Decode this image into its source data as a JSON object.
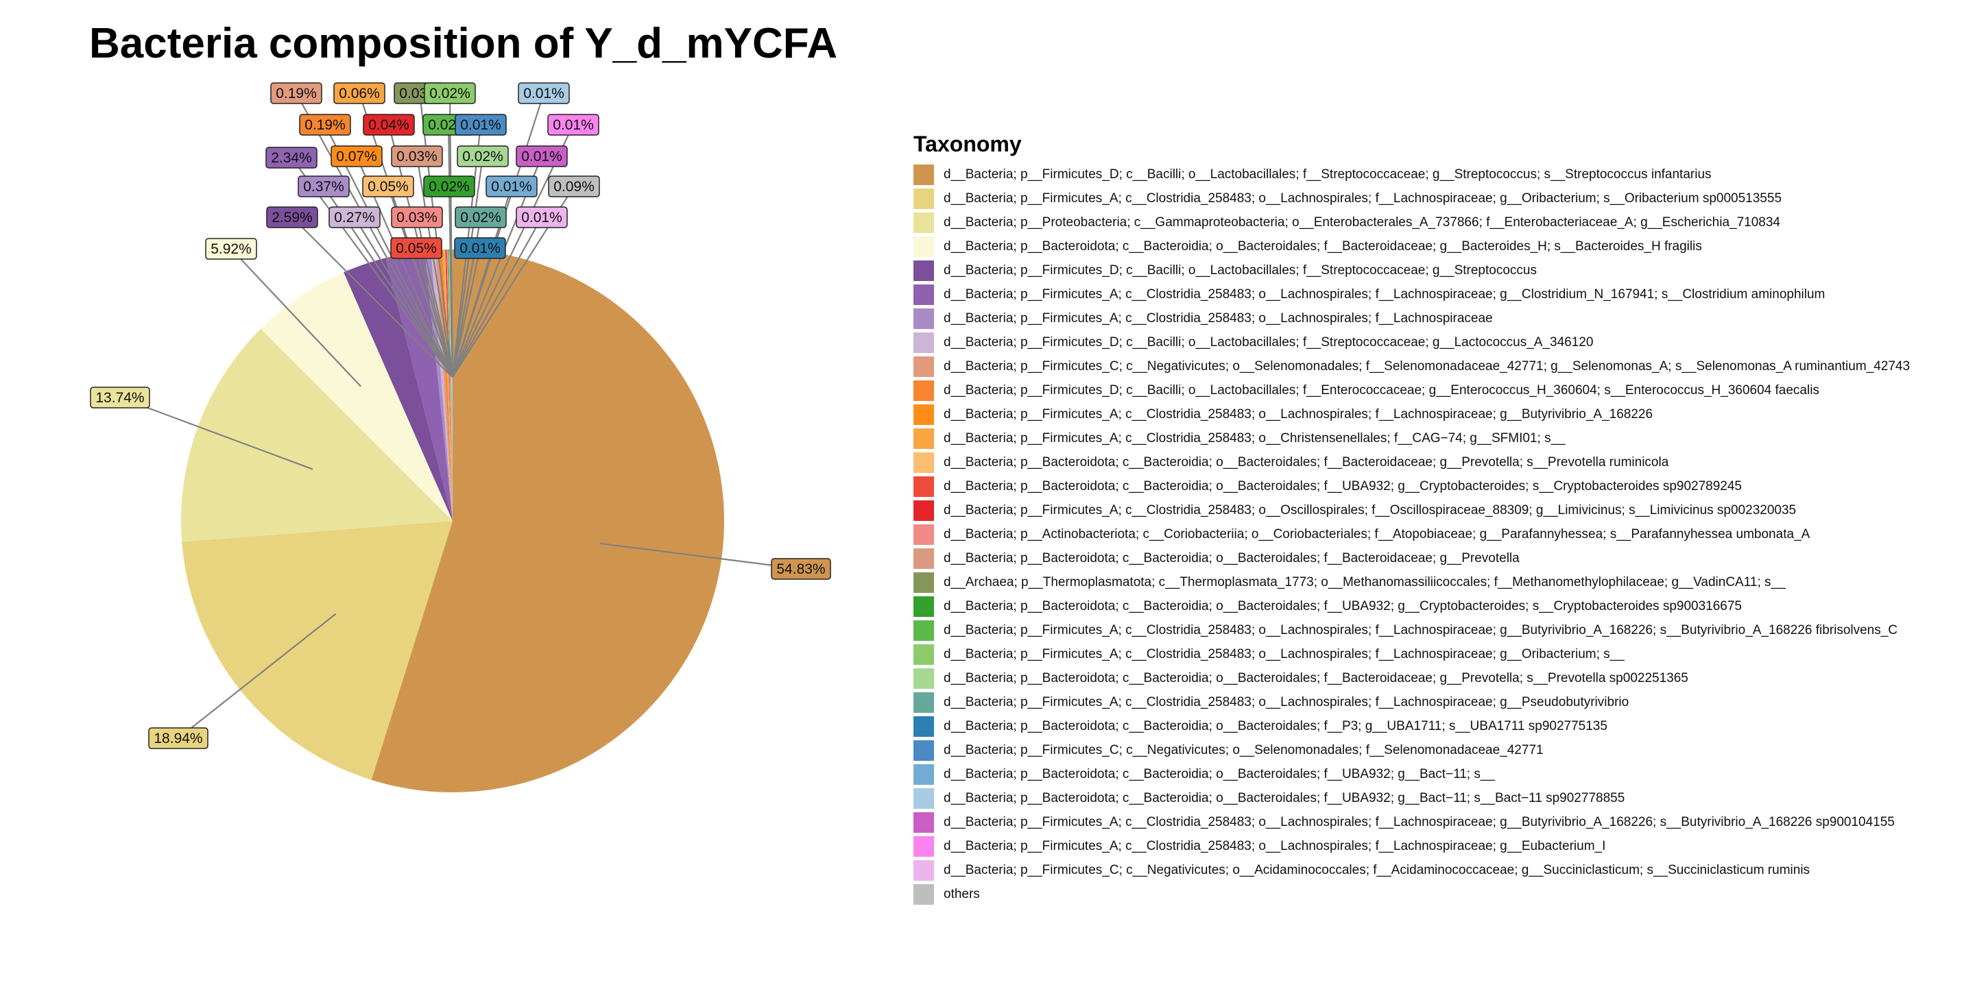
{
  "chart_data": {
    "type": "pie",
    "title": "Bacteria composition of Y_d_mYCFA",
    "legend_title": "Taxonomy",
    "legend_position": "right",
    "slices": [
      {
        "label": "d__Bacteria; p__Firmicutes_D; c__Bacilli; o__Lactobacillales; f__Streptococcaceae; g__Streptococcus; s__Streptococcus infantarius",
        "value": 54.83,
        "text": "54.83%",
        "color": "#CF954F"
      },
      {
        "label": "d__Bacteria; p__Firmicutes_A; c__Clostridia_258483; o__Lachnospirales; f__Lachnospiraceae; g__Oribacterium; s__Oribacterium sp000513555",
        "value": 18.94,
        "text": "18.94%",
        "color": "#E8D47E"
      },
      {
        "label": "d__Bacteria; p__Proteobacteria; c__Gammaproteobacteria; o__Enterobacterales_A_737866; f__Enterobacteriaceae_A; g__Escherichia_710834",
        "value": 13.74,
        "text": "13.74%",
        "color": "#EAE39C"
      },
      {
        "label": "d__Bacteria; p__Bacteroidota; c__Bacteroidia; o__Bacteroidales; f__Bacteroidaceae; g__Bacteroides_H; s__Bacteroides_H fragilis",
        "value": 5.92,
        "text": "5.92%",
        "color": "#FAF8D6"
      },
      {
        "label": "d__Bacteria; p__Firmicutes_D; c__Bacilli; o__Lactobacillales; f__Streptococcaceae; g__Streptococcus",
        "value": 2.59,
        "text": "2.59%",
        "color": "#7B4F9A"
      },
      {
        "label": "d__Bacteria; p__Firmicutes_A; c__Clostridia_258483; o__Lachnospirales; f__Lachnospiraceae; g__Clostridium_N_167941; s__Clostridium aminophilum",
        "value": 2.34,
        "text": "2.34%",
        "color": "#8E62B0"
      },
      {
        "label": "d__Bacteria; p__Firmicutes_A; c__Clostridia_258483; o__Lachnospirales; f__Lachnospiraceae",
        "value": 0.37,
        "text": "0.37%",
        "color": "#A98BC7"
      },
      {
        "label": "d__Bacteria; p__Firmicutes_D; c__Bacilli; o__Lactobacillales; f__Streptococcaceae; g__Lactococcus_A_346120",
        "value": 0.27,
        "text": "0.27%",
        "color": "#CDB5D6"
      },
      {
        "label": "d__Bacteria; p__Firmicutes_C; c__Negativicutes; o__Selenomonadales; f__Selenomonadaceae_42771; g__Selenomonas_A; s__Selenomonas_A ruminantium_42743",
        "value": 0.19,
        "text": "0.19%",
        "color": "#E29A7E"
      },
      {
        "label": "d__Bacteria; p__Firmicutes_D; c__Bacilli; o__Lactobacillales; f__Enterococcaceae; g__Enterococcus_H_360604; s__Enterococcus_H_360604 faecalis",
        "value": 0.19,
        "text": "0.19%",
        "color": "#F5852E"
      },
      {
        "label": "d__Bacteria; p__Firmicutes_A; c__Clostridia_258483; o__Lachnospirales; f__Lachnospiraceae; g__Butyrivibrio_A_168226",
        "value": 0.07,
        "text": "0.07%",
        "color": "#FF8C1A"
      },
      {
        "label": "d__Bacteria; p__Firmicutes_A; c__Clostridia_258483; o__Christensenellales; f__CAG−74; g__SFMI01; s__",
        "value": 0.06,
        "text": "0.06%",
        "color": "#F8A543"
      },
      {
        "label": "d__Bacteria; p__Bacteroidota; c__Bacteroidia; o__Bacteroidales; f__Bacteroidaceae; g__Prevotella; s__Prevotella ruminicola",
        "value": 0.05,
        "text": "0.05%",
        "color": "#FDBE72"
      },
      {
        "label": "d__Bacteria; p__Bacteroidota; c__Bacteroidia; o__Bacteroidales; f__UBA932; g__Cryptobacteroides; s__Cryptobacteroides sp902789245",
        "value": 0.05,
        "text": "0.05%",
        "color": "#EF4B3C"
      },
      {
        "label": "d__Bacteria; p__Firmicutes_A; c__Clostridia_258483; o__Oscillospirales; f__Oscillospiraceae_88309; g__Limivicinus; s__Limivicinus sp002320035",
        "value": 0.04,
        "text": "0.04%",
        "color": "#E3252A"
      },
      {
        "label": "d__Bacteria; p__Actinobacteriota; c__Coriobacteriia; o__Coriobacteriales; f__Atopobiaceae; g__Parafannyhessea; s__Parafannyhessea umbonata_A",
        "value": 0.03,
        "text": "0.03%",
        "color": "#F28A87"
      },
      {
        "label": "d__Bacteria; p__Bacteroidota; c__Bacteroidia; o__Bacteroidales; f__Bacteroidaceae; g__Prevotella",
        "value": 0.03,
        "text": "0.03%",
        "color": "#D99A80"
      },
      {
        "label": "d__Archaea; p__Thermoplasmatota; c__Thermoplasmata_1773; o__Methanomassiliicoccales; f__Methanomethylophilaceae; g__VadinCA11; s__",
        "value": 0.03,
        "text": "0.03%",
        "color": "#86965A"
      },
      {
        "label": "d__Bacteria; p__Bacteroidota; c__Bacteroidia; o__Bacteroidales; f__UBA932; g__Cryptobacteroides; s__Cryptobacteroides sp900316675",
        "value": 0.02,
        "text": "0.02%",
        "color": "#33A02C"
      },
      {
        "label": "d__Bacteria; p__Firmicutes_A; c__Clostridia_258483; o__Lachnospirales; f__Lachnospiraceae; g__Butyrivibrio_A_168226; s__Butyrivibrio_A_168226 fibrisolvens_C",
        "value": 0.02,
        "text": "0.02%",
        "color": "#5DB84A"
      },
      {
        "label": "d__Bacteria; p__Firmicutes_A; c__Clostridia_258483; o__Lachnospirales; f__Lachnospiraceae; g__Oribacterium; s__",
        "value": 0.02,
        "text": "0.02%",
        "color": "#8CCB6A"
      },
      {
        "label": "d__Bacteria; p__Bacteroidota; c__Bacteroidia; o__Bacteroidales; f__Bacteroidaceae; g__Prevotella; s__Prevotella sp002251365",
        "value": 0.02,
        "text": "0.02%",
        "color": "#A6D893"
      },
      {
        "label": "d__Bacteria; p__Firmicutes_A; c__Clostridia_258483; o__Lachnospirales; f__Lachnospiraceae; g__Pseudobutyrivibrio",
        "value": 0.02,
        "text": "0.02%",
        "color": "#66A99A"
      },
      {
        "label": "d__Bacteria; p__Bacteroidota; c__Bacteroidia; o__Bacteroidales; f__P3; g__UBA1711; s__UBA1711 sp902775135",
        "value": 0.01,
        "text": "0.01%",
        "color": "#2C7FB0"
      },
      {
        "label": "d__Bacteria; p__Firmicutes_C; c__Negativicutes; o__Selenomonadales; f__Selenomonadaceae_42771",
        "value": 0.01,
        "text": "0.01%",
        "color": "#4A8BC4"
      },
      {
        "label": "d__Bacteria; p__Bacteroidota; c__Bacteroidia; o__Bacteroidales; f__UBA932; g__Bact−11; s__",
        "value": 0.01,
        "text": "0.01%",
        "color": "#74ABD3"
      },
      {
        "label": "d__Bacteria; p__Bacteroidota; c__Bacteroidia; o__Bacteroidales; f__UBA932; g__Bact−11; s__Bact−11 sp902778855",
        "value": 0.01,
        "text": "0.01%",
        "color": "#A7CBE3"
      },
      {
        "label": "d__Bacteria; p__Firmicutes_A; c__Clostridia_258483; o__Lachnospirales; f__Lachnospiraceae; g__Butyrivibrio_A_168226; s__Butyrivibrio_A_168226 sp900104155",
        "value": 0.01,
        "text": "0.01%",
        "color": "#C95FC6"
      },
      {
        "label": "d__Bacteria; p__Firmicutes_A; c__Clostridia_258483; o__Lachnospirales; f__Lachnospiraceae; g__Eubacterium_I",
        "value": 0.01,
        "text": "0.01%",
        "color": "#F984EE"
      },
      {
        "label": "d__Bacteria; p__Firmicutes_C; c__Negativicutes; o__Acidaminococcales; f__Acidaminococcaceae; g__Succiniclasticum; s__Succiniclasticum ruminis",
        "value": 0.01,
        "text": "0.01%",
        "color": "#EEB4EC"
      },
      {
        "label": "others",
        "value": 0.09,
        "text": "0.09%",
        "color": "#BEBEBE"
      }
    ]
  }
}
